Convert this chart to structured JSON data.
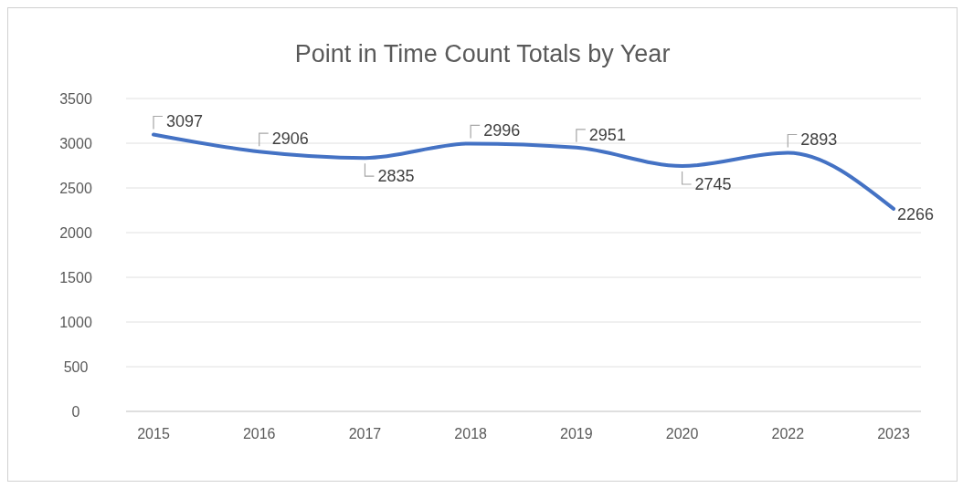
{
  "chart_data": {
    "type": "line",
    "title": "Point in Time Count Totals by Year",
    "categories": [
      "2015",
      "2016",
      "2017",
      "2018",
      "2019",
      "2020",
      "2022",
      "2023"
    ],
    "values": [
      3097,
      2906,
      2835,
      2996,
      2951,
      2745,
      2893,
      2266
    ],
    "color": "#4472c4",
    "ylim": [
      0,
      3500
    ],
    "yticks": [
      0,
      500,
      1000,
      1500,
      2000,
      2500,
      3000,
      3500
    ],
    "grid": "y",
    "data_labels": true,
    "marker": "none",
    "line_style": "solid"
  }
}
